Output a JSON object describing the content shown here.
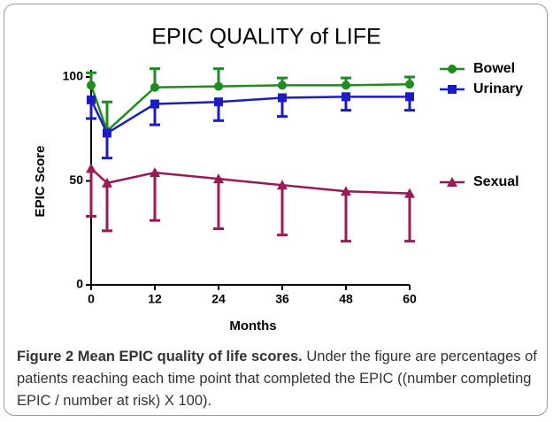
{
  "chart_data": {
    "type": "line",
    "title": "EPIC QUALITY of LIFE",
    "x_label": "Months",
    "y_label": "EPIC Score",
    "x": [
      0,
      3,
      12,
      24,
      36,
      48,
      60
    ],
    "xlim": [
      0,
      60
    ],
    "xticks": [
      0,
      12,
      24,
      36,
      48,
      60
    ],
    "ylim": [
      0,
      100
    ],
    "yticks": [
      0,
      50,
      100
    ],
    "series": [
      {
        "name": "Bowel",
        "color": "#1e8c1e",
        "marker": "circle",
        "error_side": "up",
        "values": [
          96,
          74,
          95,
          95.5,
          96,
          96,
          96.5
        ],
        "errors": [
          6,
          14,
          9,
          8.5,
          3.5,
          3.5,
          3.5
        ]
      },
      {
        "name": "Urinary",
        "color": "#1c1cc4",
        "marker": "square",
        "error_side": "down",
        "values": [
          89,
          73,
          87,
          88,
          90,
          90.5,
          90.5
        ],
        "errors": [
          9,
          12,
          10,
          9,
          9,
          6.5,
          6.5
        ]
      },
      {
        "name": "Sexual",
        "color": "#9a1a55",
        "marker": "triangle",
        "error_side": "down",
        "values": [
          56,
          49,
          54,
          51,
          48,
          45,
          44
        ],
        "errors": [
          23,
          23,
          23,
          24,
          24,
          24,
          23
        ]
      }
    ]
  },
  "caption": {
    "label": "Figure 2",
    "title": "Mean EPIC quality of life scores.",
    "text": "Under the figure are percentages of patients reaching each time point that completed the EPIC ((number completing EPIC / number at risk) X 100)."
  }
}
